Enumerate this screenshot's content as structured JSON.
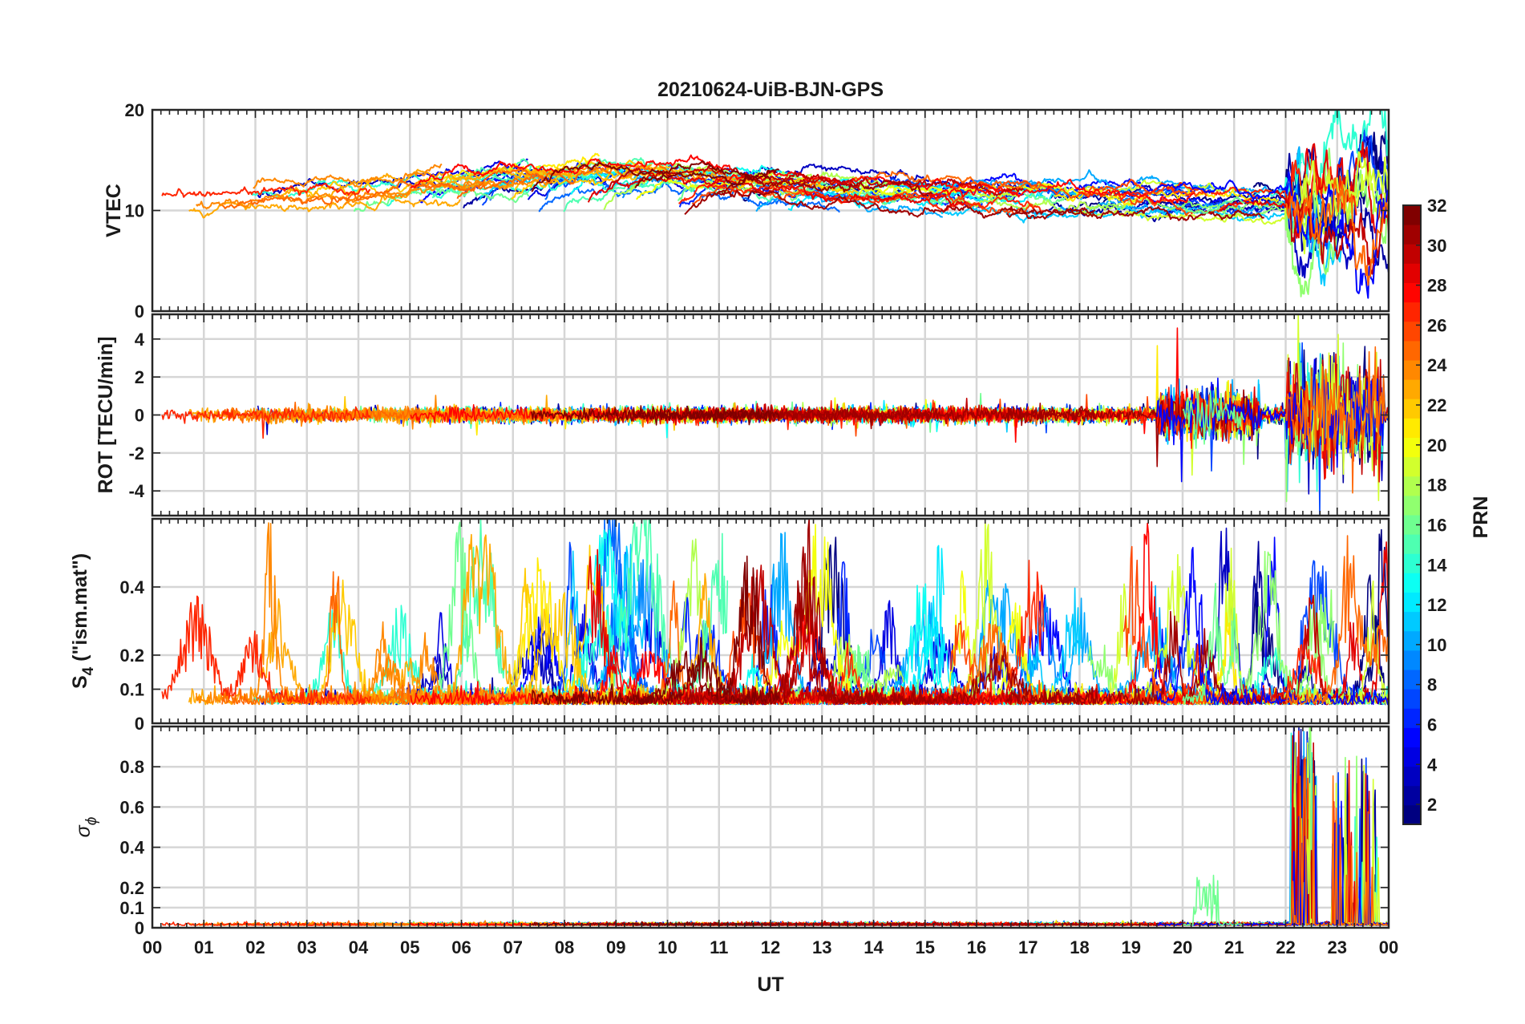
{
  "chart_data": {
    "type": "line",
    "title": "20210624-UiB-BJN-GPS",
    "xlabel": "UT",
    "x_range_hours": [
      0,
      24
    ],
    "x_tick_labels": [
      "00",
      "01",
      "02",
      "03",
      "04",
      "05",
      "06",
      "07",
      "08",
      "09",
      "10",
      "11",
      "12",
      "13",
      "14",
      "15",
      "16",
      "17",
      "18",
      "19",
      "20",
      "21",
      "22",
      "23",
      "00"
    ],
    "grid": true,
    "series_count": 32,
    "legend": "colorbar-right",
    "panels": [
      {
        "name": "vtec",
        "ylabel": "VTEC",
        "ylim": [
          0,
          20
        ],
        "y_ticks": [
          0,
          10,
          20
        ],
        "y_tick_labels": [
          "0",
          "10",
          "20"
        ],
        "description": "Vertical TEC per satellite; mostly 9-15 TECU, disturbed after 22 UT"
      },
      {
        "name": "rot",
        "ylabel": "ROT [TECU/min]",
        "ylim": [
          -5.3,
          5.3
        ],
        "y_ticks": [
          -4,
          -2,
          0,
          2,
          4
        ],
        "y_tick_labels": [
          "-4",
          "-2",
          "0",
          "2",
          "4"
        ],
        "description": "Rate of TEC; near 0, spikes up to +/-4 near 20.5 UT and 22-23.5 UT"
      },
      {
        "name": "s4",
        "ylabel_main": "S",
        "ylabel_sub": "4",
        "ylabel_rest": " (\"ism.mat\")",
        "ylim": [
          0,
          0.6
        ],
        "y_ticks": [
          0,
          0.1,
          0.2,
          0.4
        ],
        "y_tick_labels": [
          "0",
          "0.1",
          "0.2",
          "0.4"
        ],
        "description": "Amplitude scintillation index S4; baseline ~0.05-0.1 with bursts to ~0.4-0.5"
      },
      {
        "name": "sigphi",
        "ylabel_main": "σ",
        "ylabel_sub": "ϕ",
        "ylim": [
          0,
          1
        ],
        "y_ticks": [
          0,
          0.1,
          0.2,
          0.4,
          0.6,
          0.8
        ],
        "y_tick_labels": [
          "0",
          "0.1",
          "0.2",
          "0.4",
          "0.6",
          "0.8"
        ],
        "description": "Phase scintillation sigma-phi; near 0 except ~0.25 near 20.5 UT and up to 1 during 22-23.8 UT"
      }
    ],
    "colorbar": {
      "label": "PRN",
      "range": [
        1,
        32
      ],
      "ticks": [
        2,
        4,
        6,
        8,
        10,
        12,
        14,
        16,
        18,
        20,
        22,
        24,
        26,
        28,
        30,
        32
      ],
      "tick_labels": [
        "2",
        "4",
        "6",
        "8",
        "10",
        "12",
        "14",
        "16",
        "18",
        "20",
        "22",
        "24",
        "26",
        "28",
        "30",
        "32"
      ],
      "colormap": "jet"
    }
  },
  "colors": {
    "grid": "#d6d6d6",
    "axis": "#262626",
    "background": "#ffffff"
  }
}
